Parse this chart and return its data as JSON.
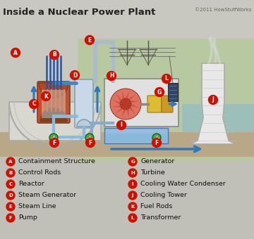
{
  "title": "Inside a Nuclear Power Plant",
  "copyright": "©2011 HowStuffWorks",
  "bg_top": "#c8c8c0",
  "bg_legend": "#c0c0b8",
  "green_bg": "#b8c8a0",
  "water_blue": "#7ab8d8",
  "ground_tan": "#b8a888",
  "red_circle": "#cc1100",
  "dome_fill": "#d8d8d0",
  "dome_edge": "#aaaaaa",
  "reactor_fill": "#c05030",
  "reactor_edge": "#804020",
  "pipe_blue": "#4488bb",
  "pipe_light": "#88bbdd",
  "steam_gen_fill": "#c8d8e8",
  "steam_gen_edge": "#7799aa",
  "turb_box_fill": "#e0e0e0",
  "turb_box_edge": "#999999",
  "turbine_fill": "#cc5544",
  "gen_fill": "#ddbb44",
  "gen_edge": "#997722",
  "cooling_tower_fill": "#e8e8e8",
  "cooling_tower_edge": "#aaaaaa",
  "arrow_blue": "#3377bb",
  "legend_items_left": [
    [
      "A",
      "Containment Structure"
    ],
    [
      "B",
      "Control Rods"
    ],
    [
      "C",
      "Reactor"
    ],
    [
      "D",
      "Steam Generator"
    ],
    [
      "E",
      "Steam Line"
    ],
    [
      "F",
      "Pump"
    ]
  ],
  "legend_items_right": [
    [
      "G",
      "Generator"
    ],
    [
      "H",
      "Turbine"
    ],
    [
      "I",
      "Cooling Water Condenser"
    ],
    [
      "J",
      "Cooling Tower"
    ],
    [
      "K",
      "Fuel Rods"
    ],
    [
      "L",
      "Transformer"
    ]
  ]
}
